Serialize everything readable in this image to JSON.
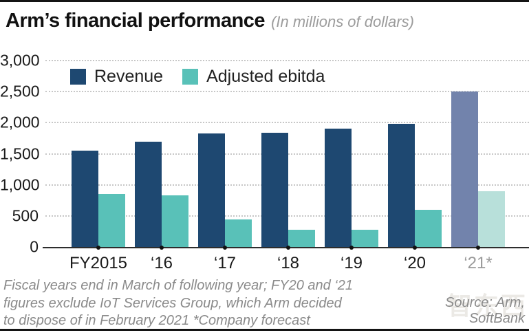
{
  "header": {
    "title": "Arm’s financial performance",
    "subtitle": "(In millions of dollars)"
  },
  "chart_data": {
    "type": "bar",
    "categories": [
      "FY2015",
      "‘16",
      "‘17",
      "‘18",
      "‘19",
      "‘20",
      "‘21*"
    ],
    "series": [
      {
        "name": "Revenue",
        "color": "#1e4871",
        "forecast_color": "#7283ac",
        "values": [
          1550,
          1690,
          1830,
          1840,
          1900,
          1980,
          2500
        ]
      },
      {
        "name": "Adjusted ebitda",
        "color": "#59c1b8",
        "forecast_color": "#b8e0da",
        "values": [
          850,
          830,
          440,
          280,
          280,
          600,
          900
        ]
      }
    ],
    "forecast_index": 6,
    "ylim": [
      0,
      3000
    ],
    "yticks": [
      0,
      500,
      1000,
      1500,
      2000,
      2500,
      3000
    ],
    "ytick_labels": [
      "0",
      "500",
      "1,000",
      "1,500",
      "2,000",
      "2,500",
      "3,000"
    ],
    "grid": "horizontal dotted",
    "legend_position": "top-left inside plot",
    "axis_color": "#2d2d2d",
    "gridline_color": "#c7c7c7"
  },
  "footer": {
    "note_lines": [
      "Fiscal years end in March of following year; FY20 and ‘21",
      "figures exclude IoT Services Group, which Arm decided",
      "to dispose of in February 2021  *Company forecast"
    ],
    "source_lines": [
      "Source: Arm,",
      "SoftBank"
    ],
    "watermark": "智东西"
  }
}
